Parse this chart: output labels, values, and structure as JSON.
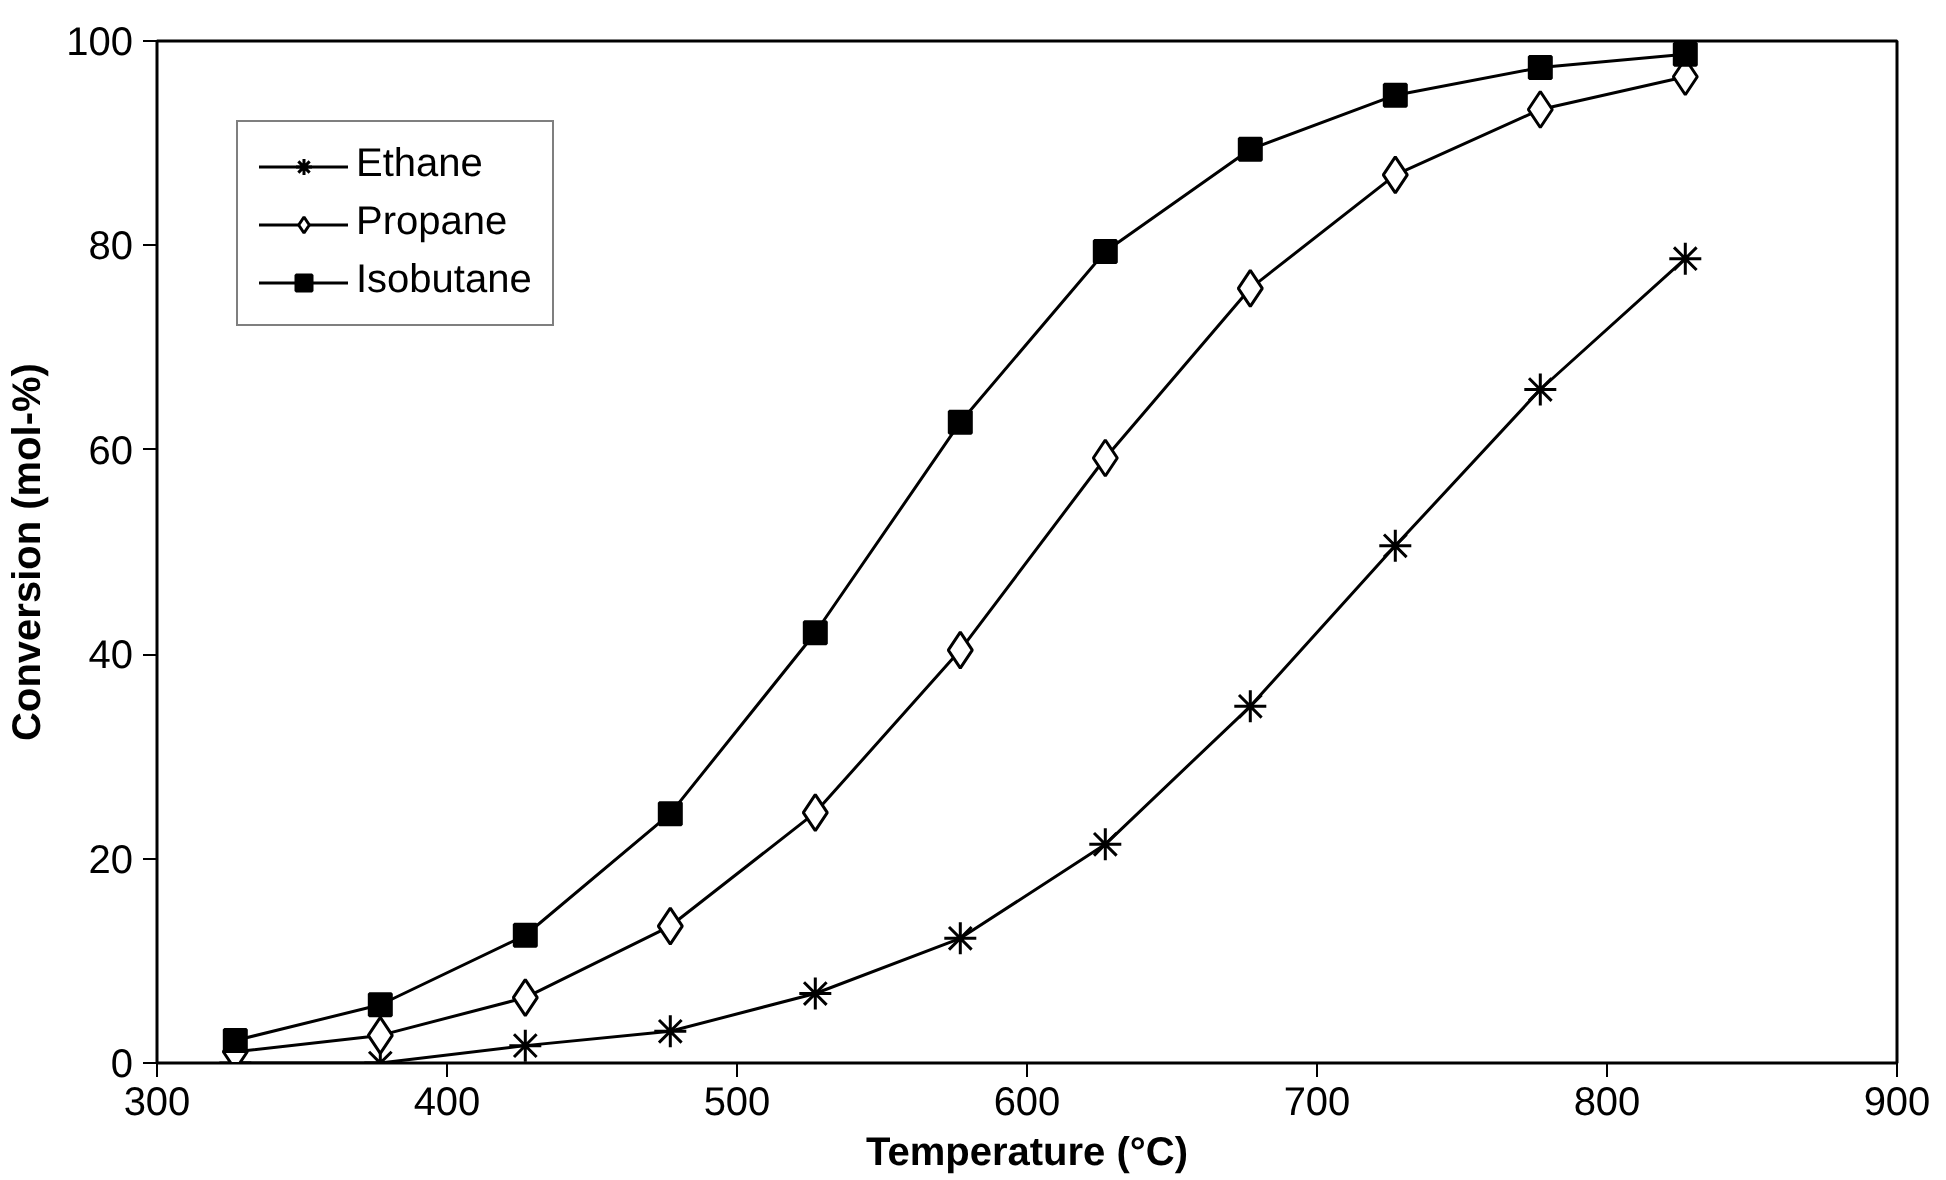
{
  "chart_data": {
    "type": "line",
    "xlabel": "Temperature (°C)",
    "ylabel": "Conversion (mol-%)",
    "x": [
      327,
      377,
      427,
      477,
      527,
      577,
      627,
      677,
      727,
      777,
      827
    ],
    "xlim": [
      300,
      900
    ],
    "xticks": [
      300,
      400,
      500,
      600,
      700,
      800,
      900
    ],
    "ylim": [
      0,
      100
    ],
    "yticks": [
      0,
      20,
      40,
      60,
      80,
      100
    ],
    "grid": false,
    "legend": "top left",
    "series": [
      {
        "name": "Ethane",
        "color": "#000000",
        "marker": "cross",
        "values": [
          0,
          0,
          1.7,
          3.1,
          6.8,
          12.2,
          21.4,
          34.9,
          50.6,
          65.9,
          78.7
        ]
      },
      {
        "name": "Propane",
        "color": "#000000",
        "marker": "diamond",
        "values": [
          1.1,
          2.7,
          6.4,
          13.4,
          24.5,
          40.4,
          59.2,
          75.8,
          86.9,
          93.3,
          96.5
        ]
      },
      {
        "name": "Isobutane",
        "color": "#000000",
        "marker": "square",
        "values": [
          2.2,
          5.7,
          12.5,
          24.4,
          42.1,
          62.7,
          79.4,
          89.4,
          94.7,
          97.4,
          98.7
        ]
      }
    ]
  }
}
